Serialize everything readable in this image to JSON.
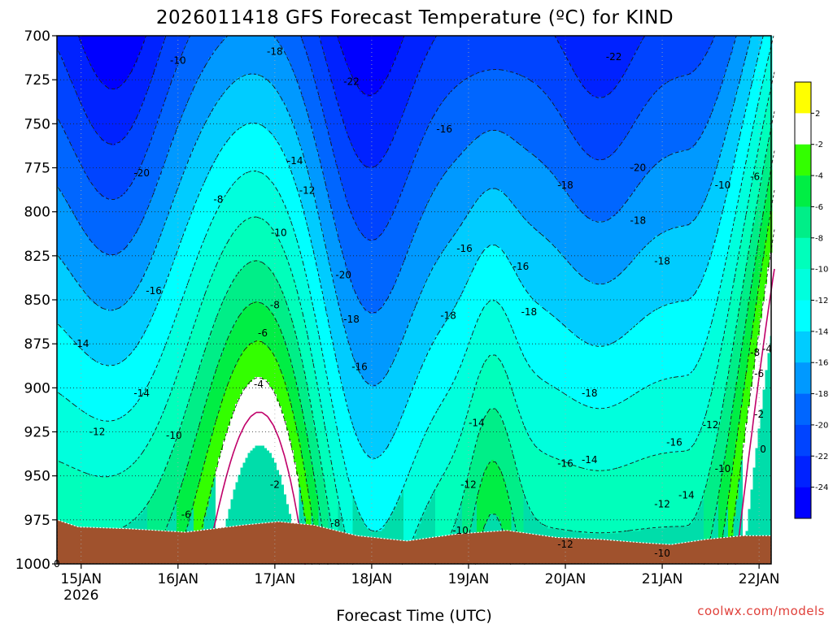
{
  "chart_data": {
    "type": "heatmap",
    "title": "2026011418 GFS Forecast Temperature (ºC) for KIND",
    "xlabel": "Forecast Time (UTC)",
    "ylabel": "",
    "credit": "coolwx.com/models",
    "x_ticks": [
      "15JAN",
      "16JAN",
      "17JAN",
      "18JAN",
      "19JAN",
      "20JAN",
      "21JAN",
      "22JAN"
    ],
    "x_year": "2026",
    "y_ticks": [
      "700",
      "725",
      "750",
      "775",
      "800",
      "825",
      "850",
      "875",
      "900",
      "925",
      "950",
      "975",
      "1000"
    ],
    "xlim": [
      "2026-01-14 18Z",
      "2026-01-22 03Z"
    ],
    "ylim": [
      1000,
      700
    ],
    "colorbar": {
      "levels": [
        2,
        -2,
        -4,
        -6,
        -8,
        -10,
        -12,
        -14,
        -16,
        -18,
        -20,
        -22,
        -24
      ],
      "labels": [
        "2",
        "-2",
        "-4",
        "-6",
        "-8",
        "-10",
        "-12",
        "-14",
        "-16",
        "-18",
        "-20",
        "-22",
        "-24"
      ],
      "colors": [
        "#ffff00",
        "#ffffff",
        "#33ff00",
        "#00ee44",
        "#00ee88",
        "#00ffbb",
        "#00ffdd",
        "#00ffff",
        "#00ccff",
        "#0099ff",
        "#0066ff",
        "#0044ff",
        "#0022ff",
        "#0000ff"
      ]
    },
    "ground_color": "#a0522d",
    "contour_labels": [
      {
        "t": "2026-01-14 18Z",
        "p": 1000,
        "v": "0"
      },
      {
        "t": "2026-01-15 00Z",
        "p": 875,
        "v": "-14"
      },
      {
        "t": "2026-01-15 04Z",
        "p": 925,
        "v": "-12"
      },
      {
        "t": "2026-01-15 15Z",
        "p": 778,
        "v": "-20"
      },
      {
        "t": "2026-01-15 18Z",
        "p": 845,
        "v": "-16"
      },
      {
        "t": "2026-01-15 15Z",
        "p": 903,
        "v": "-14"
      },
      {
        "t": "2026-01-16 00Z",
        "p": 714,
        "v": "-10"
      },
      {
        "t": "2026-01-15 23Z",
        "p": 927,
        "v": "-10"
      },
      {
        "t": "2026-01-16 02Z",
        "p": 972,
        "v": "-6"
      },
      {
        "t": "2026-01-16 10Z",
        "p": 793,
        "v": "-8"
      },
      {
        "t": "2026-01-16 21Z",
        "p": 869,
        "v": "-6"
      },
      {
        "t": "2026-01-16 20Z",
        "p": 898,
        "v": "-4"
      },
      {
        "t": "2026-01-17 00Z",
        "p": 955,
        "v": "-2"
      },
      {
        "t": "2026-01-17 01Z",
        "p": 812,
        "v": "-10"
      },
      {
        "t": "2026-01-17 00Z",
        "p": 853,
        "v": "-8"
      },
      {
        "t": "2026-01-17 08Z",
        "p": 788,
        "v": "-12"
      },
      {
        "t": "2026-01-17 05Z",
        "p": 771,
        "v": "-14"
      },
      {
        "t": "2026-01-17 00Z",
        "p": 709,
        "v": "-18"
      },
      {
        "t": "2026-01-17 15Z",
        "p": 977,
        "v": "-8"
      },
      {
        "t": "2026-01-17 17Z",
        "p": 836,
        "v": "-20"
      },
      {
        "t": "2026-01-17 19Z",
        "p": 726,
        "v": "-22"
      },
      {
        "t": "2026-01-17 19Z",
        "p": 861,
        "v": "-18"
      },
      {
        "t": "2026-01-17 21Z",
        "p": 888,
        "v": "-16"
      },
      {
        "t": "2026-01-18 18Z",
        "p": 753,
        "v": "-16"
      },
      {
        "t": "2026-01-18 23Z",
        "p": 821,
        "v": "-16"
      },
      {
        "t": "2026-01-18 19Z",
        "p": 859,
        "v": "-18"
      },
      {
        "t": "2026-01-19 02Z",
        "p": 920,
        "v": "-14"
      },
      {
        "t": "2026-01-19 00Z",
        "p": 955,
        "v": "-12"
      },
      {
        "t": "2026-01-18 22Z",
        "p": 981,
        "v": "-10"
      },
      {
        "t": "2026-01-19 13Z",
        "p": 831,
        "v": "-16"
      },
      {
        "t": "2026-01-19 15Z",
        "p": 857,
        "v": "-18"
      },
      {
        "t": "2026-01-20 00Z",
        "p": 785,
        "v": "-18"
      },
      {
        "t": "2026-01-20 06Z",
        "p": 903,
        "v": "-18"
      },
      {
        "t": "2026-01-20 00Z",
        "p": 943,
        "v": "-16"
      },
      {
        "t": "2026-01-20 06Z",
        "p": 941,
        "v": "-14"
      },
      {
        "t": "2026-01-20 00Z",
        "p": 989,
        "v": "-12"
      },
      {
        "t": "2026-01-20 12Z",
        "p": 712,
        "v": "-22"
      },
      {
        "t": "2026-01-20 18Z",
        "p": 775,
        "v": "-20"
      },
      {
        "t": "2026-01-20 18Z",
        "p": 805,
        "v": "-18"
      },
      {
        "t": "2026-01-21 00Z",
        "p": 828,
        "v": "-18"
      },
      {
        "t": "2026-01-21 03Z",
        "p": 931,
        "v": "-16"
      },
      {
        "t": "2026-01-21 06Z",
        "p": 961,
        "v": "-14"
      },
      {
        "t": "2026-01-21 00Z",
        "p": 966,
        "v": "-12"
      },
      {
        "t": "2026-01-21 00Z",
        "p": 994,
        "v": "-10"
      },
      {
        "t": "2026-01-21 15Z",
        "p": 785,
        "v": "-10"
      },
      {
        "t": "2026-01-21 12Z",
        "p": 921,
        "v": "-12"
      },
      {
        "t": "2026-01-21 15Z",
        "p": 946,
        "v": "-10"
      },
      {
        "t": "2026-01-21 23Z",
        "p": 780,
        "v": "-6"
      },
      {
        "t": "2026-01-21 23Z",
        "p": 880,
        "v": "-8"
      },
      {
        "t": "2026-01-22 00Z",
        "p": 892,
        "v": "-6"
      },
      {
        "t": "2026-01-22 00Z",
        "p": 915,
        "v": "-2"
      },
      {
        "t": "2026-01-22 02Z",
        "p": 878,
        "v": "-4"
      },
      {
        "t": "2026-01-22 01Z",
        "p": 935,
        "v": "0"
      }
    ]
  }
}
